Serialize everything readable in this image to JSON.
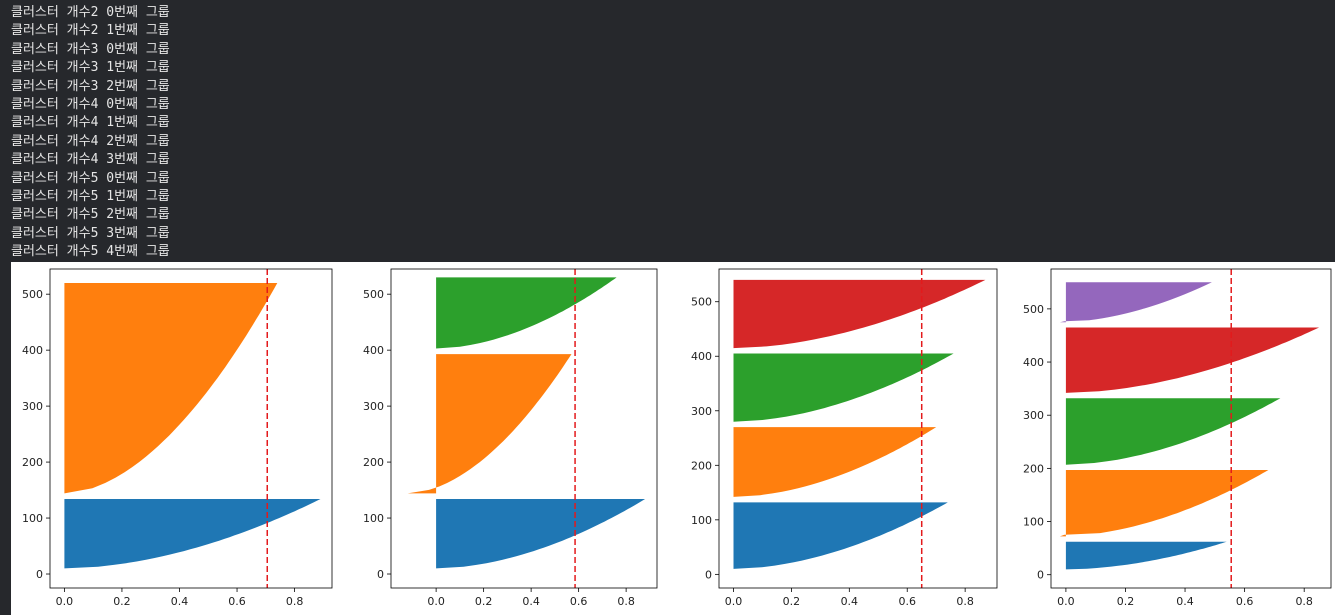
{
  "console": {
    "lines": [
      "클러스터 개수2 0번째 그룹",
      "클러스터 개수2 1번째 그룹",
      "클러스터 개수3 0번째 그룹",
      "클러스터 개수3 1번째 그룹",
      "클러스터 개수3 2번째 그룹",
      "클러스터 개수4 0번째 그룹",
      "클러스터 개수4 1번째 그룹",
      "클러스터 개수4 2번째 그룹",
      "클러스터 개수4 3번째 그룹",
      "클러스터 개수5 0번째 그룹",
      "클러스터 개수5 1번째 그룹",
      "클러스터 개수5 2번째 그룹",
      "클러스터 개수5 3번째 그룹",
      "클러스터 개수5 4번째 그룹"
    ]
  },
  "colors": {
    "console_bg": "#26282c",
    "console_text": "#e6e6e6",
    "cluster": [
      "#1f77b4",
      "#ff7f0e",
      "#2ca02c",
      "#d62728",
      "#9467bd"
    ],
    "avg_line": "#e31a1c"
  },
  "chart_data": [
    {
      "type": "area",
      "n_clusters": 2,
      "xlim": [
        -0.05,
        0.93
      ],
      "ylim": [
        -25,
        545
      ],
      "xticks": [
        0.0,
        0.2,
        0.4,
        0.6,
        0.8
      ],
      "xtick_labels": [
        "0.0",
        "0.2",
        "0.4",
        "0.6",
        "0.8"
      ],
      "yticks": [
        0,
        100,
        200,
        300,
        400,
        500
      ],
      "ytick_labels": [
        "0",
        "100",
        "200",
        "300",
        "400",
        "500"
      ],
      "avg_silhouette": 0.705,
      "clusters": [
        {
          "y_lower": 10,
          "y_upper": 134,
          "min": 0.0,
          "max": 0.89
        },
        {
          "y_lower": 144,
          "y_upper": 520,
          "min": 0.0,
          "max": 0.74
        }
      ]
    },
    {
      "type": "area",
      "n_clusters": 3,
      "xlim": [
        -0.19,
        0.93
      ],
      "ylim": [
        -25,
        545
      ],
      "xticks": [
        0.0,
        0.2,
        0.4,
        0.6,
        0.8
      ],
      "xtick_labels": [
        "0.0",
        "0.2",
        "0.4",
        "0.6",
        "0.8"
      ],
      "yticks": [
        0,
        100,
        200,
        300,
        400,
        500
      ],
      "ytick_labels": [
        "0",
        "100",
        "200",
        "300",
        "400",
        "500"
      ],
      "avg_silhouette": 0.585,
      "clusters": [
        {
          "y_lower": 10,
          "y_upper": 134,
          "min": 0.0,
          "max": 0.88
        },
        {
          "y_lower": 144,
          "y_upper": 393,
          "min": -0.12,
          "max": 0.57
        },
        {
          "y_lower": 403,
          "y_upper": 530,
          "min": 0.0,
          "max": 0.76
        }
      ]
    },
    {
      "type": "area",
      "n_clusters": 4,
      "xlim": [
        -0.05,
        0.91
      ],
      "ylim": [
        -25,
        560
      ],
      "xticks": [
        0.0,
        0.2,
        0.4,
        0.6,
        0.8
      ],
      "xtick_labels": [
        "0.0",
        "0.2",
        "0.4",
        "0.6",
        "0.8"
      ],
      "yticks": [
        0,
        100,
        200,
        300,
        400,
        500
      ],
      "ytick_labels": [
        "0",
        "100",
        "200",
        "300",
        "400",
        "500"
      ],
      "avg_silhouette": 0.65,
      "clusters": [
        {
          "y_lower": 10,
          "y_upper": 132,
          "min": 0.0,
          "max": 0.74
        },
        {
          "y_lower": 142,
          "y_upper": 270,
          "min": 0.0,
          "max": 0.7
        },
        {
          "y_lower": 280,
          "y_upper": 405,
          "min": 0.0,
          "max": 0.76
        },
        {
          "y_lower": 415,
          "y_upper": 540,
          "min": 0.0,
          "max": 0.87
        }
      ]
    },
    {
      "type": "area",
      "n_clusters": 5,
      "xlim": [
        -0.05,
        0.89
      ],
      "ylim": [
        -25,
        575
      ],
      "xticks": [
        0.0,
        0.2,
        0.4,
        0.6,
        0.8
      ],
      "xtick_labels": [
        "0.0",
        "0.2",
        "0.4",
        "0.6",
        "0.8"
      ],
      "yticks": [
        0,
        100,
        200,
        300,
        400,
        500
      ],
      "ytick_labels": [
        "0",
        "100",
        "200",
        "300",
        "400",
        "500"
      ],
      "avg_silhouette": 0.555,
      "clusters": [
        {
          "y_lower": 10,
          "y_upper": 62,
          "min": 0.0,
          "max": 0.54
        },
        {
          "y_lower": 72,
          "y_upper": 197,
          "min": -0.02,
          "max": 0.68
        },
        {
          "y_lower": 207,
          "y_upper": 332,
          "min": 0.0,
          "max": 0.72
        },
        {
          "y_lower": 342,
          "y_upper": 465,
          "min": 0.0,
          "max": 0.85
        },
        {
          "y_lower": 475,
          "y_upper": 550,
          "min": -0.02,
          "max": 0.49
        }
      ]
    }
  ]
}
